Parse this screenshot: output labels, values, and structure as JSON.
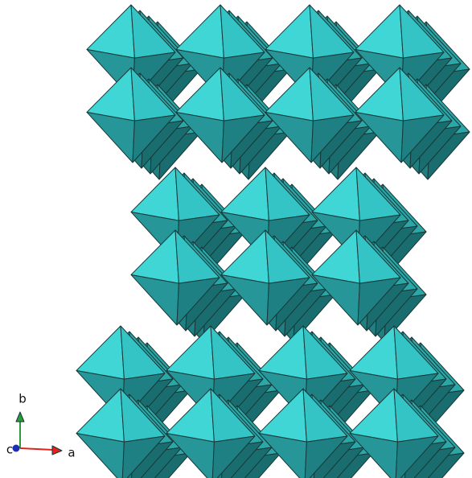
{
  "axes": {
    "a": "a",
    "b": "b",
    "c": "c"
  }
}
